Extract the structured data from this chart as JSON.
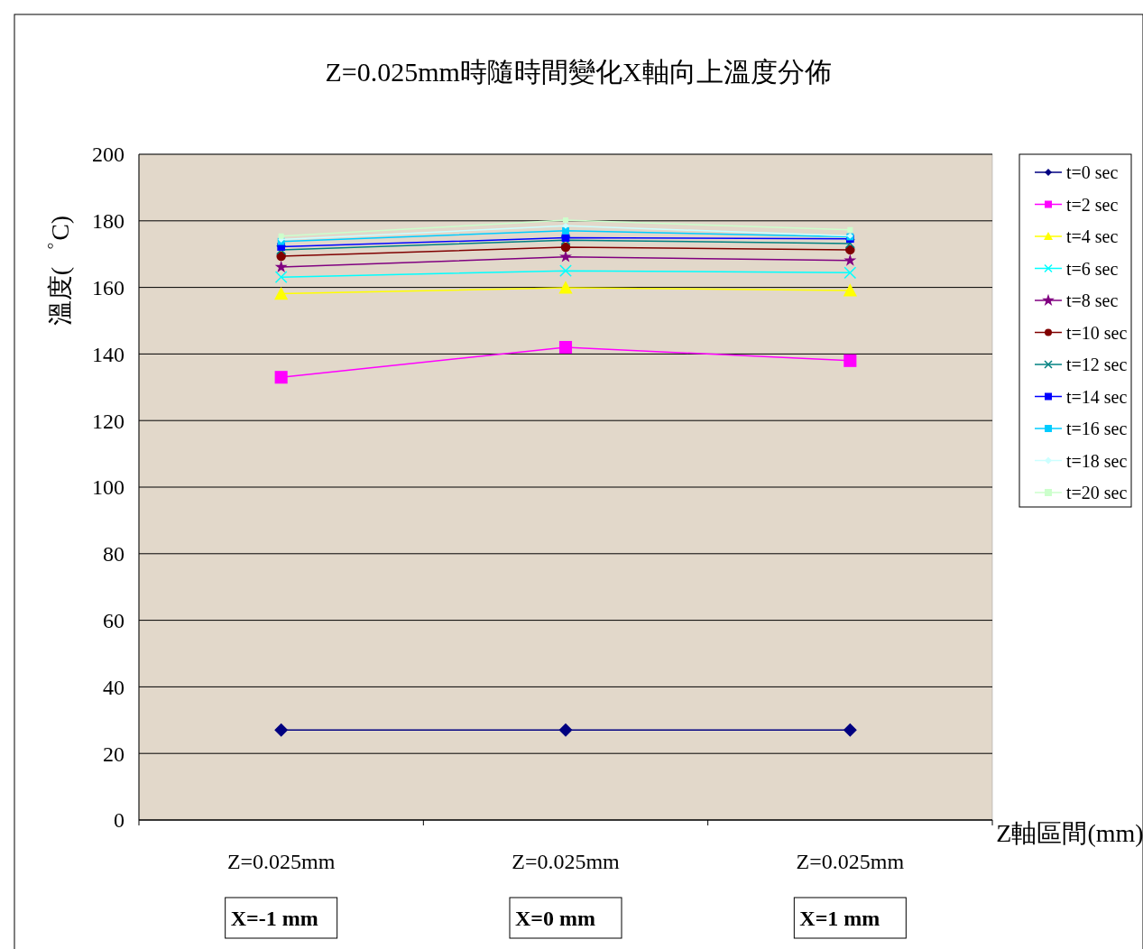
{
  "chart_data": {
    "type": "line",
    "title": "Z=0.025mm時隨時間變化X軸向上溫度分佈",
    "xlabel": "Z軸區間(mm)",
    "ylabel": "溫度(゜C)",
    "categories": [
      "Z=0.025mm",
      "Z=0.025mm",
      "Z=0.025mm"
    ],
    "annotations": [
      "X=-1 mm",
      "X=0 mm",
      "X=1 mm"
    ],
    "ylim": [
      0,
      200
    ],
    "yticks": [
      0,
      20,
      40,
      60,
      80,
      100,
      120,
      140,
      160,
      180,
      200
    ],
    "grid": "y",
    "legend": "right",
    "line_style": "solid",
    "series": [
      {
        "name": "t=0 sec",
        "color": "#000080",
        "marker": "diamond",
        "values": [
          27,
          27,
          27
        ]
      },
      {
        "name": "t=2 sec",
        "color": "#ff00ff",
        "marker": "square",
        "values": [
          133,
          142,
          138
        ]
      },
      {
        "name": "t=4 sec",
        "color": "#ffff00",
        "marker": "triangle",
        "values": [
          158.1,
          159.9,
          159.1
        ]
      },
      {
        "name": "t=6 sec",
        "color": "#00ffff",
        "marker": "cross",
        "values": [
          163.1,
          165,
          164.4
        ]
      },
      {
        "name": "t=8 sec",
        "color": "#800080",
        "marker": "star",
        "values": [
          166.1,
          169.2,
          168.1
        ]
      },
      {
        "name": "t=10 sec",
        "color": "#800000",
        "marker": "circle",
        "values": [
          169.4,
          172.1,
          171.3
        ]
      },
      {
        "name": "t=12 sec",
        "color": "#008080",
        "marker": "cross",
        "values": [
          171.3,
          174.2,
          173.2
        ]
      },
      {
        "name": "t=14 sec",
        "color": "#0000ff",
        "marker": "square",
        "values": [
          172.2,
          174.9,
          174.6
        ]
      },
      {
        "name": "t=16 sec",
        "color": "#00ccff",
        "marker": "square",
        "values": [
          173.8,
          177,
          175.2
        ]
      },
      {
        "name": "t=18 sec",
        "color": "#ccffff",
        "marker": "diamond",
        "values": [
          174.4,
          178.5,
          175.5
        ]
      },
      {
        "name": "t=20 sec",
        "color": "#ccffcc",
        "marker": "square",
        "values": [
          175.4,
          180.2,
          177.3
        ]
      }
    ]
  }
}
